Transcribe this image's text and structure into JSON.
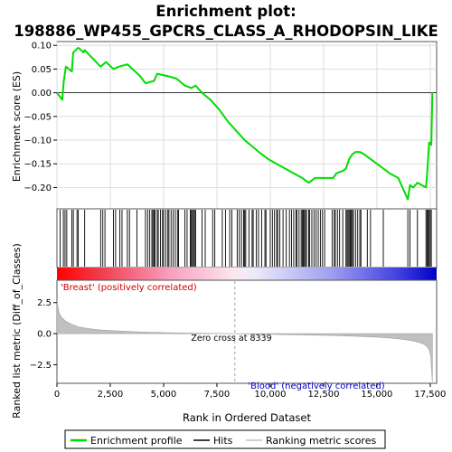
{
  "chart_data": {
    "type": "line",
    "title": "Enrichment plot: 198886_WP455_GPCRS_CLASS_A_RHODOPSIN_LIKE",
    "xlabel": "Rank in Ordered Dataset",
    "xlim": [
      0,
      17800
    ],
    "xticks": [
      0,
      2500,
      5000,
      7500,
      10000,
      12500,
      15000,
      17500
    ],
    "xtick_labels": [
      "0",
      "2,500",
      "5,000",
      "7,500",
      "10,000",
      "12,500",
      "15,000",
      "17,500"
    ],
    "es_panel": {
      "ylabel": "Enrichment score (ES)",
      "ylim": [
        -0.245,
        0.108
      ],
      "yticks": [
        0.1,
        0.05,
        0.0,
        -0.05,
        -0.1,
        -0.15,
        -0.2
      ],
      "ytick_labels": [
        "0.10",
        "0.05",
        "0.00",
        "−0.05",
        "−0.10",
        "−0.15",
        "−0.20"
      ],
      "grid": true,
      "series": [
        {
          "name": "Enrichment profile",
          "color": "#00dd00",
          "x": [
            0,
            250,
            320,
            420,
            700,
            760,
            1000,
            1250,
            1300,
            2050,
            2300,
            2650,
            2900,
            3300,
            3900,
            4150,
            4550,
            4700,
            5200,
            5600,
            6000,
            6300,
            6500,
            6800,
            7200,
            7600,
            8000,
            8400,
            8800,
            9200,
            9600,
            9900,
            10300,
            10700,
            11100,
            11500,
            11800,
            12100,
            12300,
            12500,
            12800,
            12950,
            13100,
            13400,
            13550,
            13700,
            13850,
            14000,
            14200,
            14400,
            14700,
            15000,
            15300,
            15600,
            16000,
            16450,
            16550,
            16700,
            16900,
            17100,
            17300,
            17350,
            17400,
            17450,
            17550,
            17600
          ],
          "y": [
            0.0,
            -0.015,
            0.025,
            0.055,
            0.045,
            0.085,
            0.095,
            0.085,
            0.09,
            0.055,
            0.065,
            0.05,
            0.055,
            0.06,
            0.035,
            0.02,
            0.025,
            0.04,
            0.035,
            0.03,
            0.015,
            0.01,
            0.015,
            0.0,
            -0.015,
            -0.035,
            -0.06,
            -0.08,
            -0.1,
            -0.115,
            -0.13,
            -0.14,
            -0.15,
            -0.16,
            -0.17,
            -0.18,
            -0.19,
            -0.18,
            -0.18,
            -0.18,
            -0.18,
            -0.18,
            -0.17,
            -0.165,
            -0.16,
            -0.14,
            -0.13,
            -0.125,
            -0.125,
            -0.13,
            -0.14,
            -0.15,
            -0.16,
            -0.17,
            -0.18,
            -0.225,
            -0.195,
            -0.2,
            -0.19,
            -0.195,
            -0.2,
            -0.175,
            -0.14,
            -0.105,
            -0.11,
            0.0
          ]
        }
      ]
    },
    "hits_panel": {
      "legend_name": "Hits",
      "hit_ranks": [
        150,
        300,
        380,
        460,
        700,
        770,
        940,
        1000,
        1300,
        2050,
        2150,
        2250,
        2650,
        2750,
        2950,
        3050,
        3300,
        3400,
        3750,
        4150,
        4250,
        4350,
        4450,
        4500,
        4550,
        4600,
        4700,
        4750,
        4850,
        4950,
        5000,
        5100,
        5200,
        5250,
        5350,
        5450,
        5550,
        5650,
        5700,
        6000,
        6100,
        6250,
        6300,
        6350,
        6400,
        6450,
        6500,
        6800,
        6950,
        7300,
        7400,
        7750,
        7900,
        8100,
        8200,
        8450,
        8550,
        8650,
        8750,
        8800,
        8850,
        9000,
        9150,
        9200,
        9350,
        9450,
        9600,
        9750,
        9800,
        10000,
        10100,
        10200,
        10300,
        10350,
        10450,
        10600,
        10750,
        10900,
        11000,
        11100,
        11200,
        11250,
        11350,
        11450,
        11500,
        11550,
        11600,
        11650,
        11700,
        11800,
        11850,
        11950,
        12050,
        12150,
        12250,
        12350,
        12450,
        12550,
        12900,
        13000,
        13050,
        13150,
        13250,
        13400,
        13550,
        13600,
        13650,
        13700,
        13750,
        13800,
        13850,
        13900,
        14000,
        14100,
        14200,
        14250,
        14550,
        14700,
        15300,
        16450,
        16550,
        16900,
        17300,
        17350,
        17400,
        17450,
        17500,
        17550
      ]
    },
    "metric_panel": {
      "ylabel": "Ranked list metric (Diff_of_Classes)",
      "ylim": [
        -4.0,
        4.3
      ],
      "yticks": [
        2.5,
        0.0,
        -2.5
      ],
      "ytick_labels": [
        "2.5",
        "0.0",
        "−2.5"
      ],
      "legend_name": "Ranking metric scores",
      "x": [
        0,
        100,
        200,
        400,
        700,
        1000,
        1500,
        2000,
        3000,
        4000,
        5000,
        6000,
        7000,
        8339,
        9000,
        10000,
        11000,
        12000,
        13000,
        14000,
        15000,
        15500,
        16000,
        16500,
        16800,
        17000,
        17200,
        17350,
        17450,
        17520,
        17560,
        17600
      ],
      "y": [
        2.6,
        1.7,
        1.35,
        1.0,
        0.75,
        0.55,
        0.4,
        0.3,
        0.2,
        0.13,
        0.08,
        0.05,
        0.03,
        0.0,
        -0.03,
        -0.06,
        -0.09,
        -0.12,
        -0.16,
        -0.21,
        -0.28,
        -0.34,
        -0.42,
        -0.53,
        -0.63,
        -0.72,
        -0.85,
        -1.05,
        -1.3,
        -1.8,
        -2.8,
        -3.9
      ],
      "annotations": [
        "'Breast' (positively correlated)",
        "Zero cross at 8339",
        "'Blood' (negatively correlated)"
      ],
      "zero_cross": 8339
    },
    "legend": [
      {
        "label": "Enrichment profile",
        "color": "#00dd00"
      },
      {
        "label": "Hits",
        "color": "#000000"
      },
      {
        "label": "Ranking metric scores",
        "color": "#c0c0c0"
      }
    ],
    "legend_position": "bottom"
  }
}
